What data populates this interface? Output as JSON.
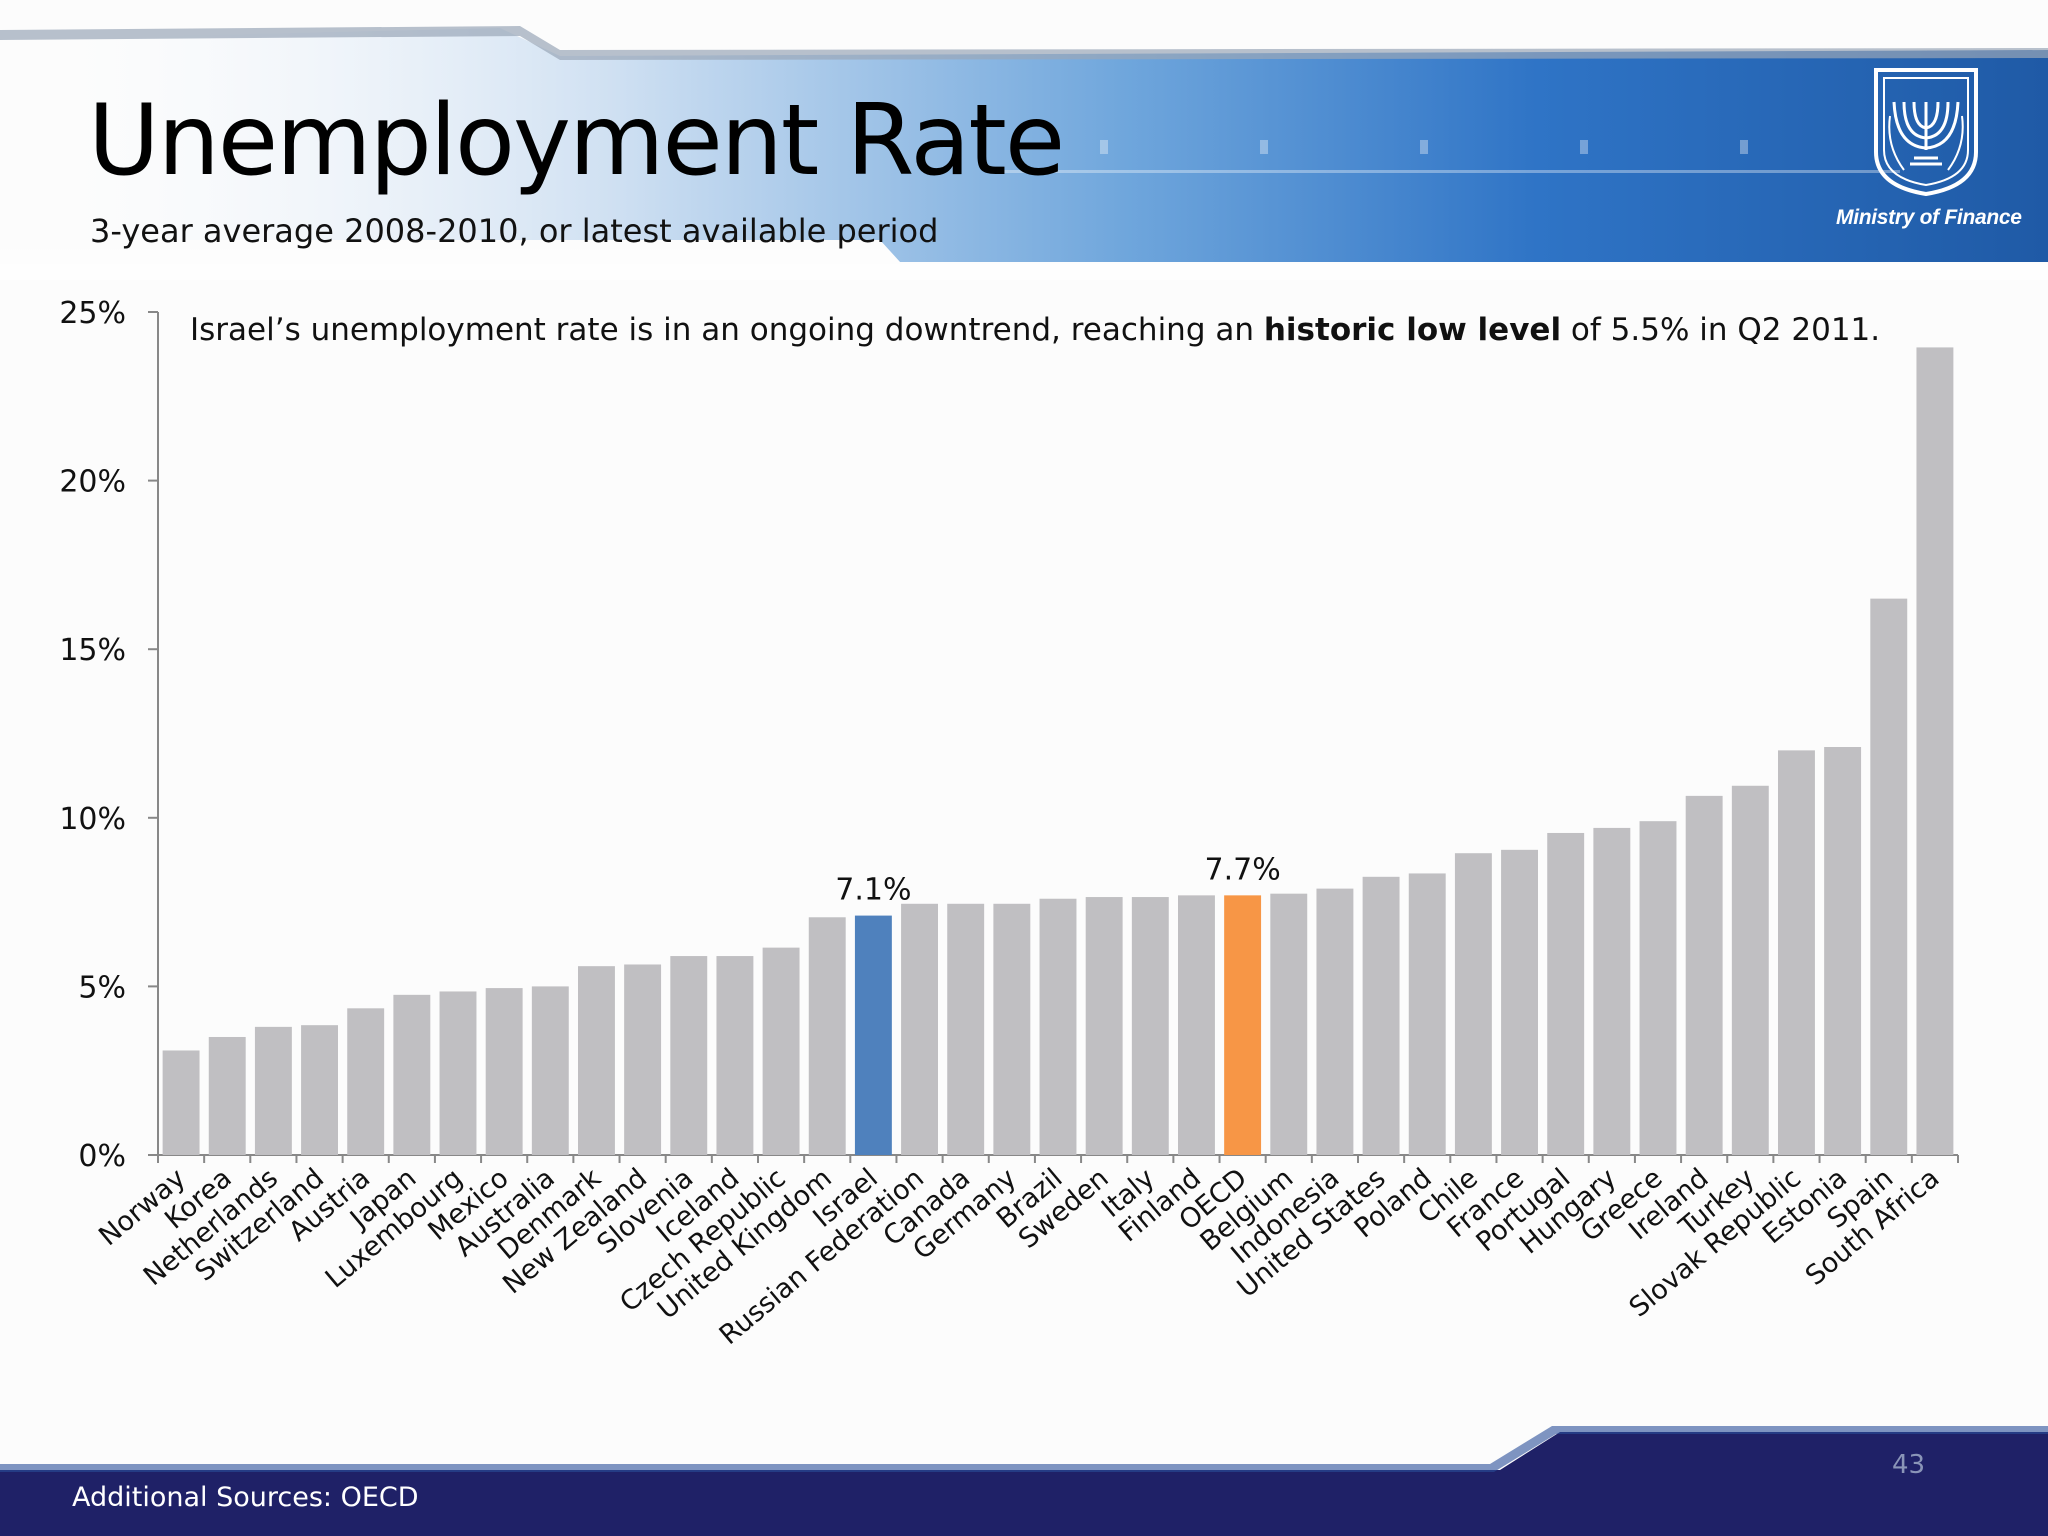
{
  "header": {
    "title": "Unemployment Rate",
    "subtitle": "3-year average 2008-2010, or latest available period",
    "logo_text": "Ministry of Finance"
  },
  "footer": {
    "source": "Additional Sources: OECD",
    "page_number": "43"
  },
  "colors": {
    "default_bar": "#c0bfc2",
    "israel_bar": "#4f81bd",
    "oecd_bar": "#f79646",
    "footer_navy": "#1f2167",
    "banner_blue": "#1d5fb0"
  },
  "chart_data": {
    "type": "bar",
    "annotation": {
      "before": "Israel’s unemployment rate is in an ongoing downtrend, reaching an ",
      "bold": "historic low level",
      "after": " of 5.5% in Q2 2011."
    },
    "yticks": [
      "0%",
      "5%",
      "10%",
      "15%",
      "20%",
      "25%"
    ],
    "ylim": [
      0,
      25
    ],
    "grid": false,
    "categories": [
      "Norway",
      "Korea",
      "Netherlands",
      "Switzerland",
      "Austria",
      "Japan",
      "Luxembourg",
      "Mexico",
      "Australia",
      "Denmark",
      "New Zealand",
      "Slovenia",
      "Iceland",
      "Czech Republic",
      "United Kingdom",
      "Israel",
      "Russian Federation",
      "Canada",
      "Germany",
      "Brazil",
      "Sweden",
      "Italy",
      "Finland",
      "OECD",
      "Belgium",
      "Indonesia",
      "United States",
      "Poland",
      "Chile",
      "France",
      "Portugal",
      "Hungary",
      "Greece",
      "Ireland",
      "Turkey",
      "Slovak Republic",
      "Estonia",
      "Spain",
      "South Africa"
    ],
    "values": [
      3.1,
      3.5,
      3.8,
      3.85,
      4.35,
      4.75,
      4.85,
      4.95,
      5.0,
      5.6,
      5.65,
      5.9,
      5.9,
      6.15,
      7.05,
      7.1,
      7.45,
      7.45,
      7.45,
      7.6,
      7.65,
      7.65,
      7.7,
      7.7,
      7.75,
      7.9,
      8.25,
      8.35,
      8.95,
      9.05,
      9.55,
      9.7,
      9.9,
      10.65,
      10.95,
      12.0,
      12.1,
      16.5,
      23.95
    ],
    "highlights": [
      {
        "category": "Israel",
        "color": "#4f81bd",
        "label": "7.1%"
      },
      {
        "category": "OECD",
        "color": "#f79646",
        "label": "7.7%"
      }
    ]
  }
}
